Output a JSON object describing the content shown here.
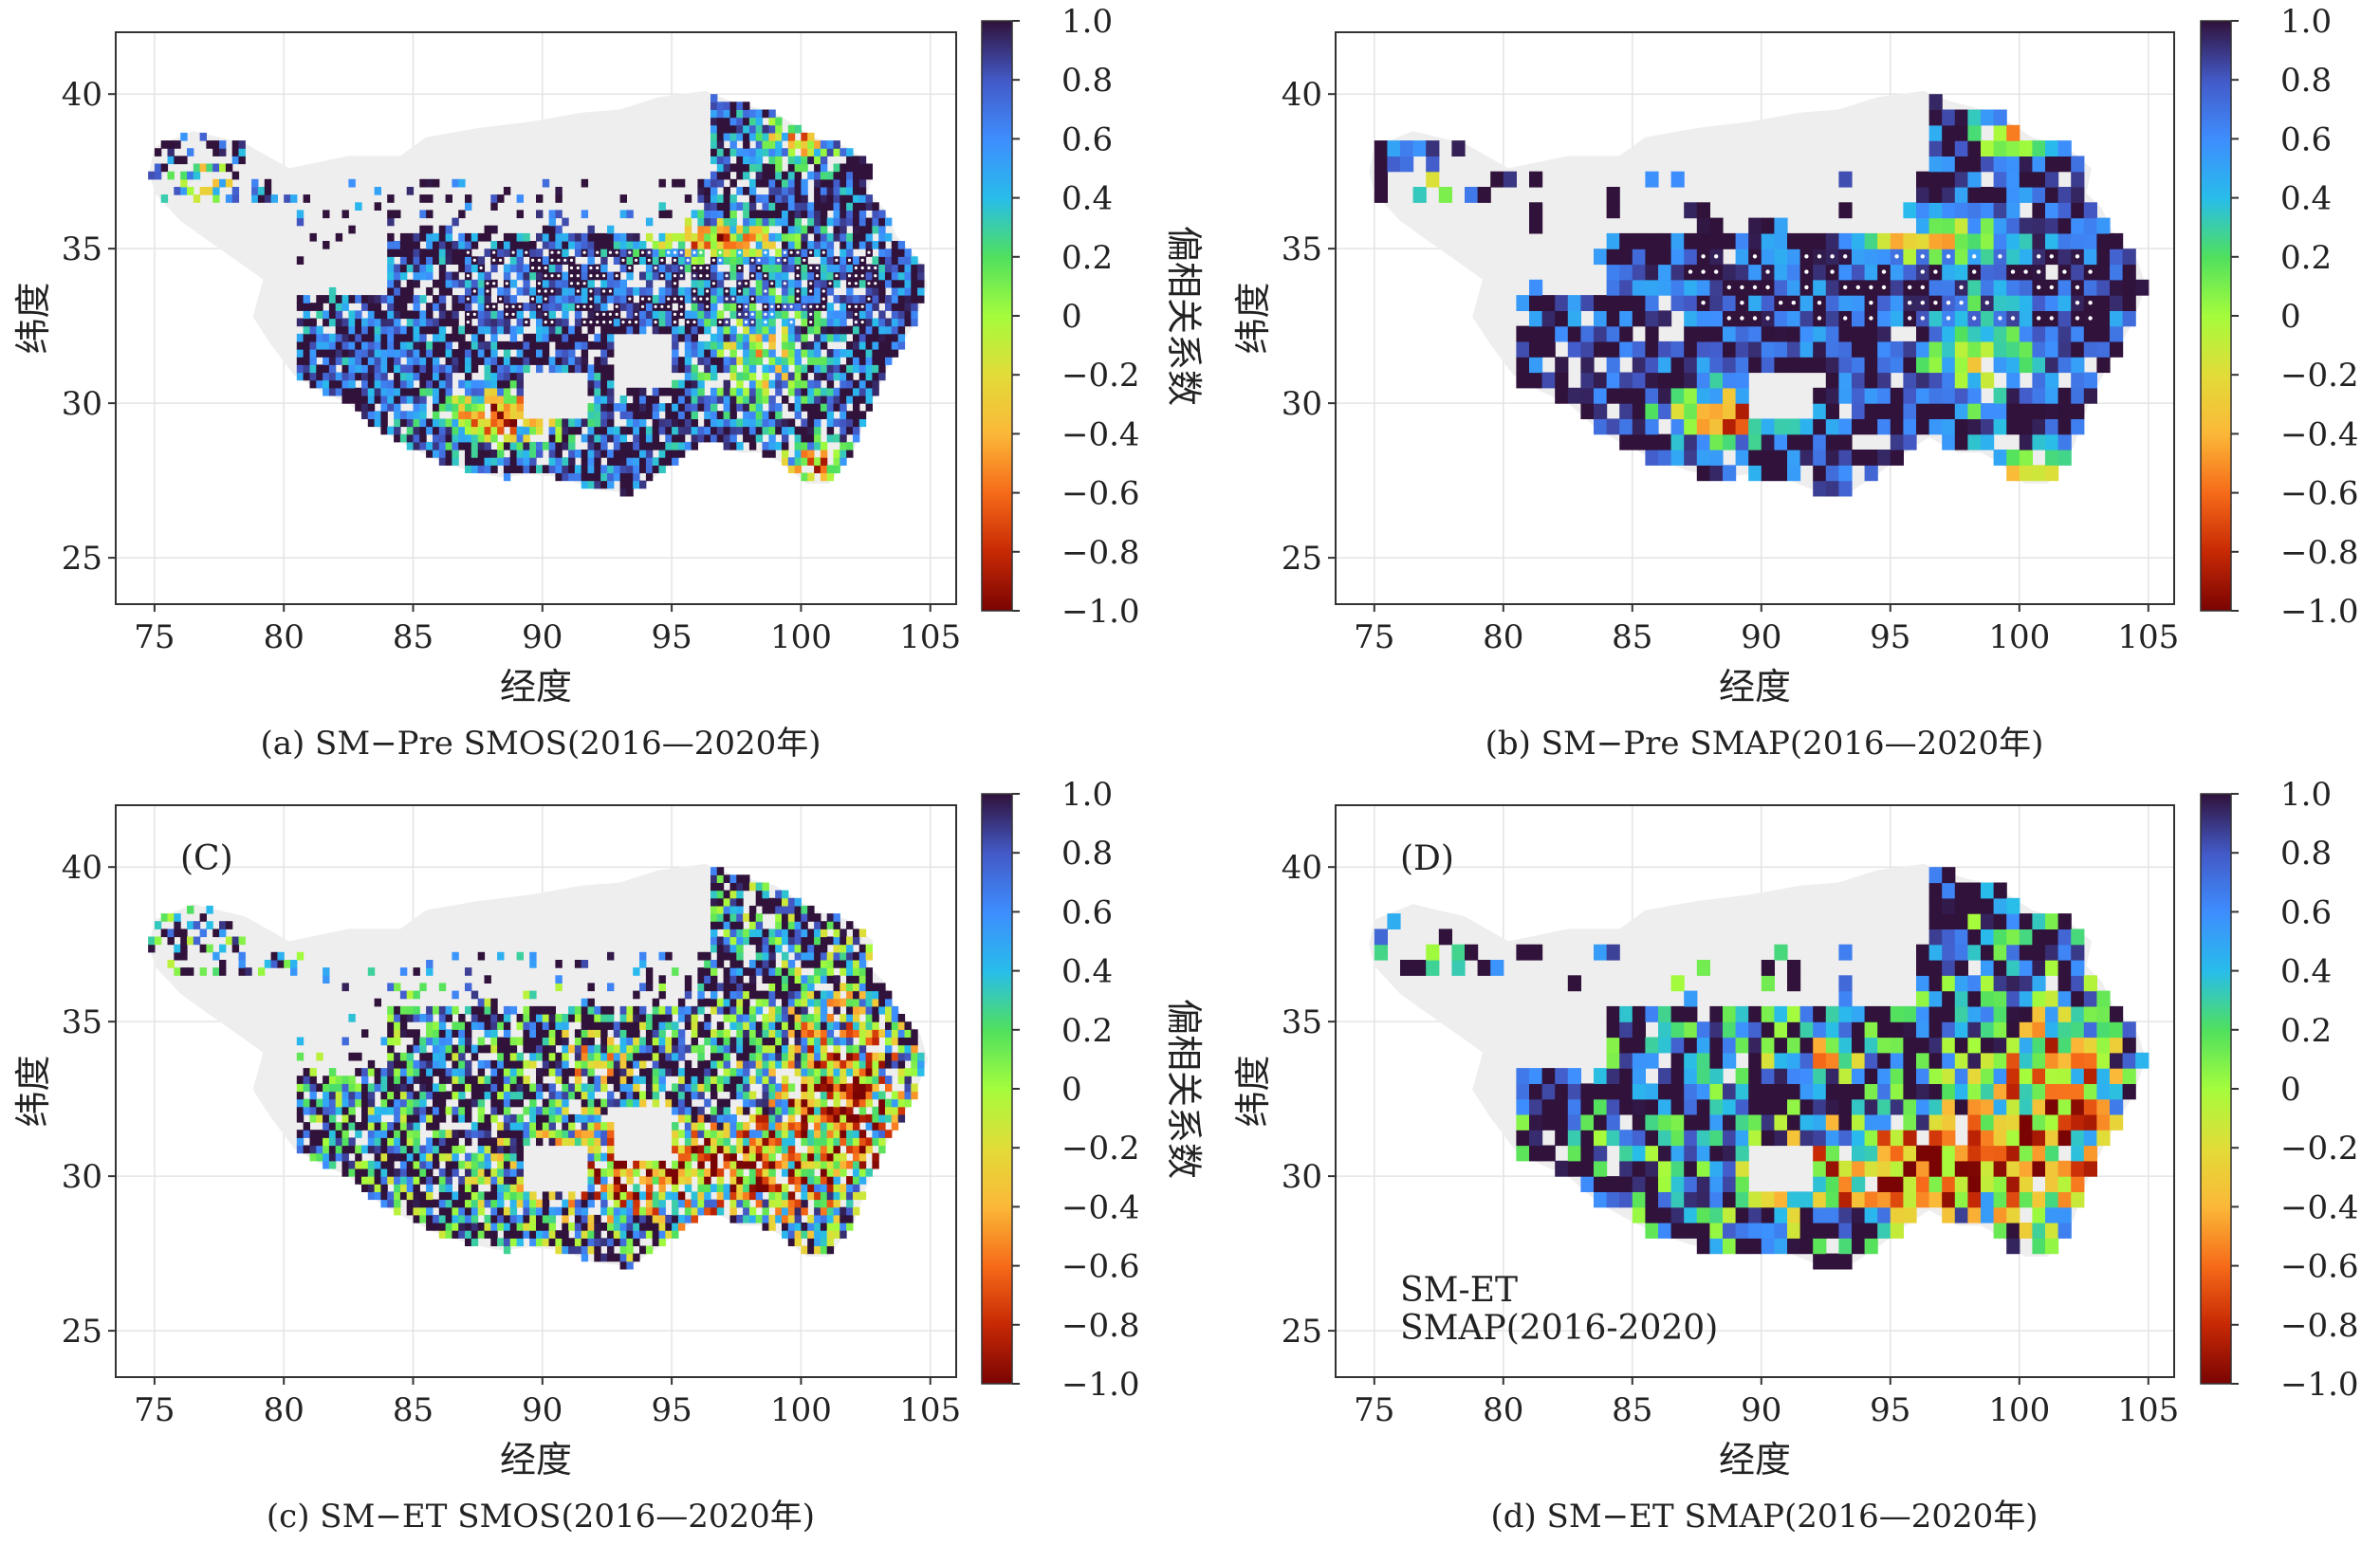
{
  "colors": {
    "land": "#efeeee",
    "frame": "#333333",
    "grid": "#e4e4e4",
    "colormap": [
      "#7a0403",
      "#c72904",
      "#f66b19",
      "#fbb838",
      "#e2dc38",
      "#a4fc3c",
      "#4fe05f",
      "#28bceb",
      "#3e8dfe",
      "#4359c6",
      "#30123b"
    ]
  },
  "chart_data": [
    {
      "id": "a",
      "type": "heatmap",
      "caption": "(a) SM−Pre SMOS(2016—2020年)",
      "xlabel": "经度",
      "ylabel": "纬度",
      "colorbar_label": "偏相关系数",
      "inset_label": "",
      "note": [],
      "xticks": [
        "75",
        "80",
        "85",
        "90",
        "95",
        "100",
        "105"
      ],
      "yticks": [
        "25",
        "30",
        "35",
        "40"
      ],
      "cbar_ticks": [
        "1.0",
        "0.8",
        "0.6",
        "0.4",
        "0.2",
        "0",
        "−0.2",
        "−0.4",
        "−0.6",
        "−0.8",
        "−1.0"
      ],
      "xlim": [
        73.5,
        106
      ],
      "ylim": [
        23.5,
        42
      ],
      "clim": [
        -1,
        1
      ],
      "grid": true,
      "resolution": "fine",
      "stippled": true
    },
    {
      "id": "b",
      "type": "heatmap",
      "caption": "(b) SM−Pre SMAP(2016—2020年)",
      "xlabel": "经度",
      "ylabel": "纬度",
      "colorbar_label": "偏相关系数",
      "inset_label": "",
      "note": [],
      "xticks": [
        "75",
        "80",
        "85",
        "90",
        "95",
        "100",
        "105"
      ],
      "yticks": [
        "25",
        "30",
        "35",
        "40"
      ],
      "cbar_ticks": [
        "1.0",
        "0.8",
        "0.6",
        "0.4",
        "0.2",
        "0",
        "−0.2",
        "−0.4",
        "−0.6",
        "−0.8",
        "−1.0"
      ],
      "xlim": [
        73.5,
        106
      ],
      "ylim": [
        23.5,
        42
      ],
      "clim": [
        -1,
        1
      ],
      "grid": true,
      "resolution": "coarse",
      "stippled": true
    },
    {
      "id": "c",
      "type": "heatmap",
      "caption": "(c) SM−ET SMOS(2016—2020年)",
      "xlabel": "经度",
      "ylabel": "纬度",
      "colorbar_label": "偏相关系数",
      "inset_label": "(C)",
      "note": [],
      "xticks": [
        "75",
        "80",
        "85",
        "90",
        "95",
        "100",
        "105"
      ],
      "yticks": [
        "25",
        "30",
        "35",
        "40"
      ],
      "cbar_ticks": [
        "1.0",
        "0.8",
        "0.6",
        "0.4",
        "0.2",
        "0",
        "−0.2",
        "−0.4",
        "−0.6",
        "−0.8",
        "−1.0"
      ],
      "xlim": [
        73.5,
        106
      ],
      "ylim": [
        23.5,
        42
      ],
      "clim": [
        -1,
        1
      ],
      "grid": true,
      "resolution": "fine",
      "stippled": false
    },
    {
      "id": "d",
      "type": "heatmap",
      "caption": "(d) SM−ET SMAP(2016—2020年)",
      "xlabel": "经度",
      "ylabel": "纬度",
      "colorbar_label": "偏相关系数",
      "inset_label": "(D)",
      "note": [
        "SM-ET",
        "SMAP(2016-2020)"
      ],
      "xticks": [
        "75",
        "80",
        "85",
        "90",
        "95",
        "100",
        "105"
      ],
      "yticks": [
        "25",
        "30",
        "35",
        "40"
      ],
      "cbar_ticks": [
        "1.0",
        "0.8",
        "0.6",
        "0.4",
        "0.2",
        "0",
        "−0.2",
        "−0.4",
        "−0.6",
        "−0.8",
        "−1.0"
      ],
      "xlim": [
        73.5,
        106
      ],
      "ylim": [
        23.5,
        42
      ],
      "clim": [
        -1,
        1
      ],
      "grid": true,
      "resolution": "coarse",
      "stippled": false
    }
  ]
}
